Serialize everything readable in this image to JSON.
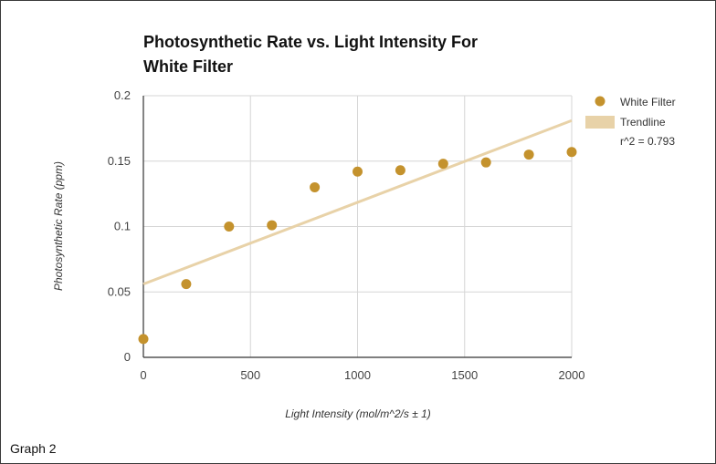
{
  "caption": "Graph 2",
  "colors": {
    "point": "#c4922d",
    "trendline": "#e8d2a8",
    "grid": "#d6d6d6",
    "axis": "#333333"
  },
  "chart_data": {
    "type": "scatter",
    "title_lines": [
      "Photosynthetic Rate vs. Light Intensity For",
      "White Filter"
    ],
    "xlabel": "Light Intensity (mol/m^2/s ± 1)",
    "ylabel": "Photosynthetic Rate (ppm)",
    "xlim": [
      0,
      2000
    ],
    "ylim": [
      0,
      0.2
    ],
    "x_ticks": [
      "0",
      "500",
      "1000",
      "1500",
      "2000"
    ],
    "y_ticks": [
      "0",
      "0.05",
      "0.1",
      "0.15",
      "0.2"
    ],
    "grid": true,
    "legend_position": "right",
    "series": [
      {
        "name": "White Filter",
        "x": [
          0,
          200,
          400,
          600,
          800,
          1000,
          1200,
          1400,
          1600,
          1800,
          2000
        ],
        "y": [
          0.014,
          0.056,
          0.1,
          0.101,
          0.13,
          0.142,
          0.143,
          0.148,
          0.149,
          0.155,
          0.157
        ]
      }
    ],
    "trendline": {
      "label": "Trendline",
      "r2_label": "r^2 = 0.793",
      "x": [
        0,
        2000
      ],
      "y": [
        0.056,
        0.181
      ]
    }
  }
}
